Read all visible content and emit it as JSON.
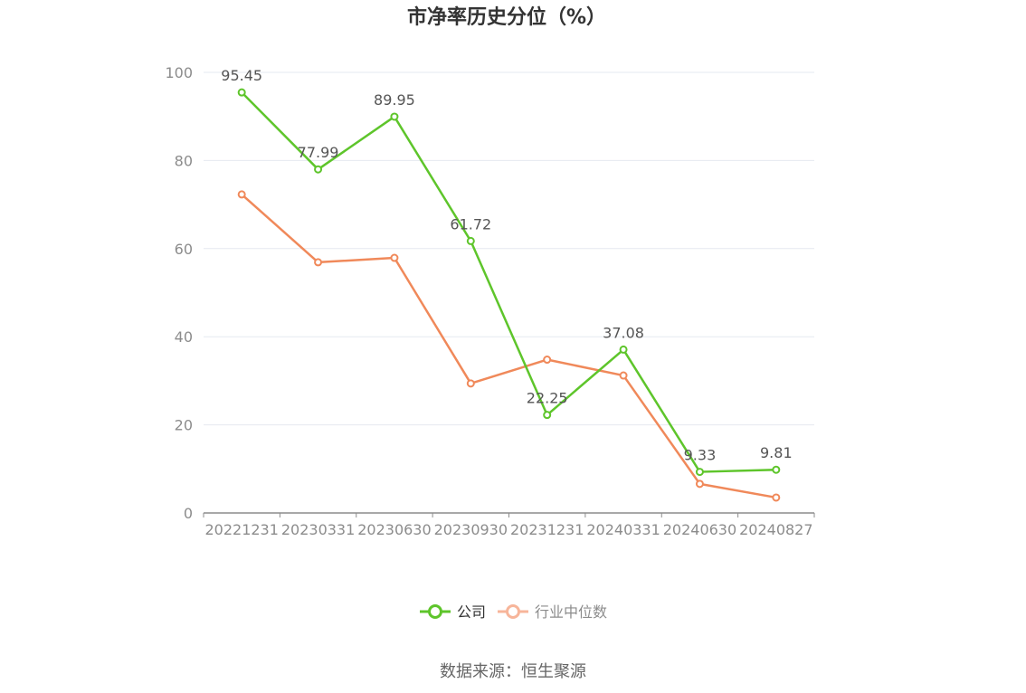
{
  "chart_data": {
    "type": "line",
    "title": "市净率历史分位（%）",
    "categories": [
      "20221231",
      "20230331",
      "20230630",
      "20230930",
      "20231231",
      "20240331",
      "20240630",
      "20240827"
    ],
    "ylim": [
      0,
      100
    ],
    "yticks": [
      0,
      20,
      40,
      60,
      80,
      100
    ],
    "grid": true,
    "legend_position": "bottom",
    "series": [
      {
        "name": "公司",
        "color": "#5ec52b",
        "values": [
          95.45,
          77.99,
          89.95,
          61.72,
          22.25,
          37.08,
          9.33,
          9.81
        ],
        "labels": [
          "95.45",
          "77.99",
          "89.95",
          "61.72",
          "22.25",
          "37.08",
          "9.33",
          "9.81"
        ]
      },
      {
        "name": "行业中位数",
        "color": "#f0895a",
        "legend_color": "#f7b59a",
        "values": [
          72.3,
          56.9,
          57.9,
          29.4,
          34.8,
          31.2,
          6.6,
          3.5
        ]
      }
    ]
  },
  "source": "数据来源：恒生聚源"
}
